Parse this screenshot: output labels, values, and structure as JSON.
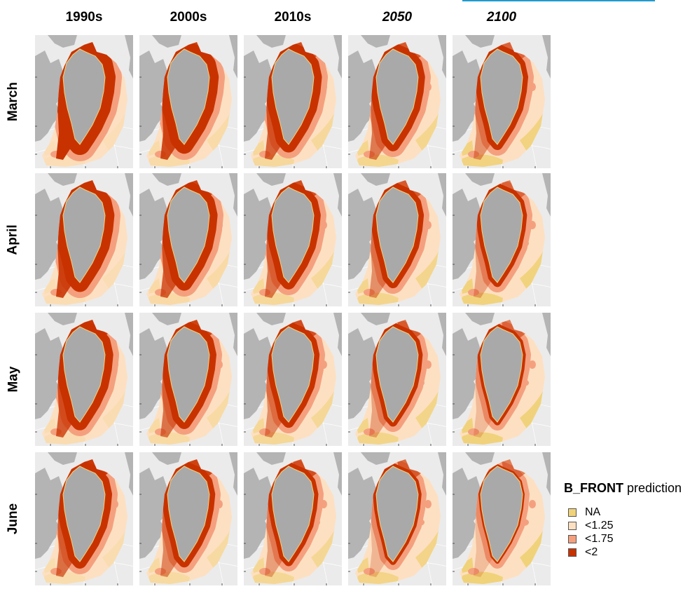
{
  "columns": [
    {
      "label": "1990s",
      "italic": false
    },
    {
      "label": "2000s",
      "italic": false
    },
    {
      "label": "2010s",
      "italic": false
    },
    {
      "label": "2050",
      "italic": true
    },
    {
      "label": "2100",
      "italic": true
    }
  ],
  "rows": [
    "March",
    "April",
    "May",
    "June"
  ],
  "legend": {
    "title_var": "B_FRONT",
    "title_suffix": " prediction",
    "items": [
      {
        "label": "NA",
        "color": "#f0d27a"
      },
      {
        "label": "<1.25",
        "color": "#fde0c2"
      },
      {
        "label": "<1.75",
        "color": "#f4a07f"
      },
      {
        "label": "<2",
        "color": "#c83200"
      }
    ]
  },
  "colors": {
    "background": "#ebebeb",
    "land": "#b4b4b4",
    "greenland": "#a9a9a9",
    "accent_line": "#1f9bd1"
  }
}
